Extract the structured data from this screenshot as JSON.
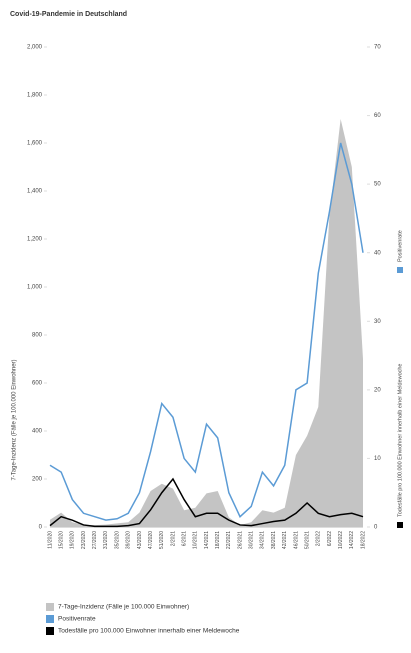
{
  "chart_data": {
    "type": "combo",
    "title": "Covid-19-Pandemie in Deutschland",
    "ylabel": "7-Tage-Inzidenz (Fälle je 100.000 Einwohner)",
    "categories": [
      "11/2020",
      "15/2020",
      "19/2020",
      "23/2020",
      "27/2020",
      "31/2020",
      "35/2020",
      "39/2020",
      "43/2020",
      "47/2020",
      "51/2020",
      "2/2021",
      "6/2021",
      "10/2021",
      "14/2021",
      "18/2021",
      "22/2021",
      "26/2021",
      "30/2021",
      "34/2021",
      "38/2021",
      "42/2021",
      "46/2021",
      "50/2021",
      "2/2022",
      "6/2022",
      "10/2022",
      "14/2022",
      "18/2022"
    ],
    "series": [
      {
        "name": "7-Tage-Inzidenz (Fälle je 100.000 Einwohner)",
        "color": "#c4c4c4",
        "kind": "area",
        "axis": "y",
        "values": [
          30,
          60,
          20,
          10,
          8,
          10,
          15,
          20,
          60,
          150,
          180,
          160,
          70,
          80,
          140,
          150,
          40,
          8,
          20,
          70,
          60,
          80,
          300,
          380,
          500,
          1300,
          1700,
          1500,
          700
        ]
      },
      {
        "name": "Positivenrate",
        "color": "#5b9bd5",
        "kind": "line",
        "axis": "y2",
        "values": [
          9,
          8,
          4,
          2,
          1.5,
          1,
          1.2,
          2,
          5,
          11,
          18,
          16,
          10,
          8,
          15,
          13,
          5,
          1.5,
          3,
          8,
          6,
          9,
          20,
          21,
          37,
          46,
          56,
          50,
          40
        ]
      },
      {
        "name": "Todesfälle pro 100.000 Einwohner innerhalb einer Meldewoche",
        "color": "#000000",
        "kind": "line",
        "axis": "y2",
        "values": [
          0.2,
          1.5,
          1,
          0.3,
          0.1,
          0.1,
          0.1,
          0.2,
          0.5,
          2.5,
          5,
          7,
          4,
          1.5,
          2,
          2,
          1,
          0.3,
          0.2,
          0.5,
          0.8,
          1,
          2,
          3.5,
          2,
          1.5,
          1.8,
          2,
          1.5
        ]
      }
    ],
    "ylim": [
      0,
      2000
    ],
    "yticks": [
      0,
      200,
      400,
      600,
      800,
      {
        "value": 1000,
        "label": "1,000"
      },
      {
        "value": 1200,
        "label": "1,200"
      },
      {
        "value": 1400,
        "label": "1,400"
      },
      {
        "value": 1600,
        "label": "1,600"
      },
      {
        "value": 1800,
        "label": "1,800"
      },
      {
        "value": 2000,
        "label": "2,000"
      }
    ],
    "y2lim": [
      0,
      70
    ],
    "y2ticks": [
      0,
      10,
      20,
      30,
      40,
      50,
      60,
      70
    ]
  }
}
